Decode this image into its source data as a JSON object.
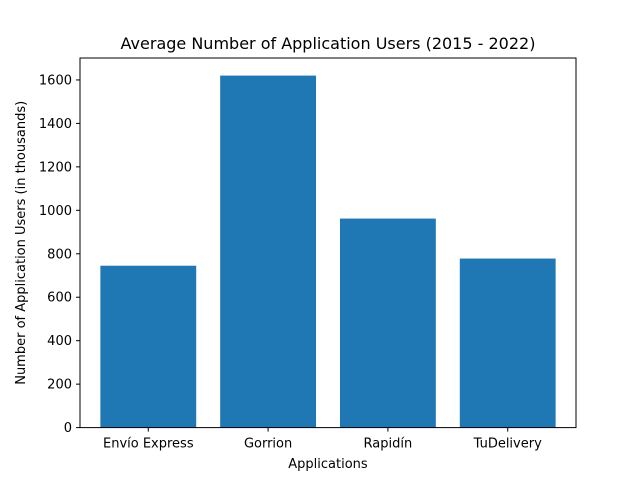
{
  "chart_data": {
    "type": "bar",
    "title": "Average Number of Application Users (2015 - 2022)",
    "xlabel": "Applications",
    "ylabel": "Number of Application Users (in thousands)",
    "categories": [
      "Envío Express",
      "Gorrion",
      "Rapidín",
      "TuDelivery"
    ],
    "values": [
      745,
      1620,
      962,
      778
    ],
    "ylim": [
      0,
      1701
    ],
    "yticks": [
      0,
      200,
      400,
      600,
      800,
      1000,
      1200,
      1400,
      1600
    ],
    "bar_color": "#1f77b4",
    "grid": false,
    "legend": "none"
  }
}
